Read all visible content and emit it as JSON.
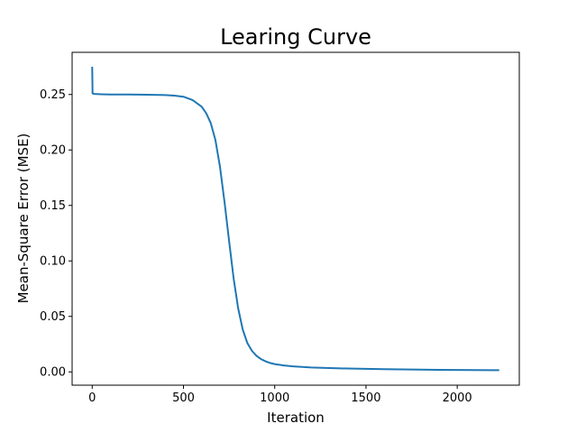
{
  "chart_data": {
    "type": "line",
    "title": "Learing Curve",
    "xlabel": "Iteration",
    "ylabel": "Mean-Square Error (MSE)",
    "xlim": [
      -110,
      2340
    ],
    "ylim": [
      -0.012,
      0.288
    ],
    "xticks": [
      0,
      500,
      1000,
      1500,
      2000
    ],
    "xtick_labels": [
      "0",
      "500",
      "1000",
      "1500",
      "2000"
    ],
    "yticks": [
      0.0,
      0.05,
      0.1,
      0.15,
      0.2,
      0.25
    ],
    "ytick_labels": [
      "0.00",
      "0.05",
      "0.10",
      "0.15",
      "0.20",
      "0.25"
    ],
    "grid": false,
    "series": [
      {
        "color": "#1f77b4",
        "x": [
          0,
          2,
          10,
          50,
          100,
          200,
          300,
          400,
          450,
          500,
          550,
          600,
          625,
          650,
          675,
          700,
          725,
          750,
          775,
          800,
          825,
          850,
          875,
          900,
          925,
          950,
          975,
          1000,
          1050,
          1100,
          1200,
          1300,
          1400,
          1500,
          1600,
          1700,
          1800,
          1900,
          2000,
          2100,
          2200,
          2230
        ],
        "y": [
          0.275,
          0.251,
          0.2505,
          0.2502,
          0.25,
          0.25,
          0.2498,
          0.2495,
          0.249,
          0.248,
          0.245,
          0.239,
          0.233,
          0.224,
          0.209,
          0.185,
          0.153,
          0.118,
          0.084,
          0.057,
          0.038,
          0.026,
          0.019,
          0.0145,
          0.0115,
          0.0095,
          0.008,
          0.007,
          0.0058,
          0.005,
          0.004,
          0.0034,
          0.003,
          0.0027,
          0.0024,
          0.0022,
          0.002,
          0.0018,
          0.0017,
          0.0016,
          0.0015,
          0.0015
        ]
      }
    ]
  }
}
